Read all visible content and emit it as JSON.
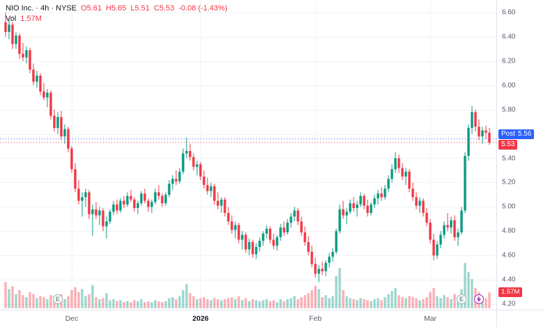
{
  "legend": {
    "title": "NIO Inc. · 4h · NYSE",
    "o": "O5.61",
    "h": "H5.65",
    "l": "L5.51",
    "c": "C5.53",
    "change": "-0.08 (-1.43%)",
    "vol_label": "Vol",
    "vol_value": "1.57M"
  },
  "price_axis": {
    "labels": [
      "6.60",
      "6.40",
      "6.20",
      "6.00",
      "5.80",
      "5.60",
      "5.40",
      "5.20",
      "5.00",
      "4.80",
      "4.60",
      "4.40",
      "4.20"
    ],
    "post_badge": {
      "label": "Post",
      "value": "5.56"
    },
    "last_badge": "5.53",
    "volume_badge": "1.57M"
  },
  "time_axis": {
    "ticks": [
      {
        "label": "Dec",
        "bar": 19,
        "major": false
      },
      {
        "label": "2026",
        "bar": 56,
        "major": true
      },
      {
        "label": "Feb",
        "bar": 89,
        "major": false
      },
      {
        "label": "Mar",
        "bar": 122,
        "major": false
      }
    ]
  },
  "markers": {
    "earnings_label": "E",
    "earnings": [
      {
        "bar": 15
      },
      {
        "bar": 131
      }
    ],
    "lightning": {
      "bar": 136
    }
  },
  "colors": {
    "up": "#089981",
    "down": "#F23645",
    "vol_up": "rgba(8,153,129,0.4)",
    "vol_down": "rgba(242,54,69,0.4)",
    "post": "#2962FF",
    "grid": "#EFF2F6",
    "axis_text": "#555B66"
  },
  "chart_data": {
    "type": "candlestick",
    "title": "NIO Inc. · 4h · NYSE",
    "price_range": [
      4.2,
      6.6
    ],
    "grid_step": 0.2,
    "last_price": 5.53,
    "post_market_price": 5.56,
    "last_volume_label": "1.57M",
    "volume_scale_max_m": 4.5,
    "x_axis_months": [
      "Dec",
      "2026",
      "Feb",
      "Mar"
    ],
    "candles": [
      [
        6.52,
        6.6,
        6.4,
        6.44
      ],
      [
        6.44,
        6.54,
        6.38,
        6.5
      ],
      [
        6.5,
        6.52,
        6.3,
        6.34
      ],
      [
        6.34,
        6.44,
        6.3,
        6.41
      ],
      [
        6.41,
        6.43,
        6.22,
        6.26
      ],
      [
        6.26,
        6.35,
        6.2,
        6.23
      ],
      [
        6.23,
        6.32,
        6.18,
        6.29
      ],
      [
        6.29,
        6.31,
        6.1,
        6.13
      ],
      [
        6.13,
        6.18,
        6.0,
        6.03
      ],
      [
        6.03,
        6.12,
        5.98,
        6.08
      ],
      [
        6.08,
        6.1,
        5.92,
        5.95
      ],
      [
        5.95,
        6.02,
        5.88,
        5.9
      ],
      [
        5.9,
        5.97,
        5.82,
        5.94
      ],
      [
        5.94,
        5.96,
        5.72,
        5.75
      ],
      [
        5.75,
        5.8,
        5.62,
        5.65
      ],
      [
        5.65,
        5.78,
        5.6,
        5.74
      ],
      [
        5.74,
        5.79,
        5.55,
        5.58
      ],
      [
        5.58,
        5.68,
        5.52,
        5.64
      ],
      [
        5.64,
        5.66,
        5.45,
        5.48
      ],
      [
        5.48,
        5.5,
        5.28,
        5.31
      ],
      [
        5.31,
        5.36,
        5.12,
        5.15
      ],
      [
        5.15,
        5.22,
        5.02,
        5.05
      ],
      [
        5.05,
        5.12,
        4.92,
        5.08
      ],
      [
        5.08,
        5.15,
        5.0,
        5.12
      ],
      [
        5.12,
        5.14,
        4.9,
        4.94
      ],
      [
        4.94,
        5.02,
        4.76,
        4.98
      ],
      [
        4.98,
        5.04,
        4.9,
        4.93
      ],
      [
        4.93,
        5.0,
        4.85,
        4.97
      ],
      [
        4.97,
        4.99,
        4.8,
        4.84
      ],
      [
        4.84,
        4.92,
        4.74,
        4.88
      ],
      [
        4.88,
        4.98,
        4.86,
        4.96
      ],
      [
        4.96,
        5.05,
        4.93,
        5.02
      ],
      [
        5.02,
        5.06,
        4.94,
        4.97
      ],
      [
        4.97,
        5.07,
        4.95,
        5.05
      ],
      [
        5.05,
        5.09,
        4.99,
        5.02
      ],
      [
        5.02,
        5.12,
        5.0,
        5.09
      ],
      [
        5.09,
        5.14,
        5.04,
        5.06
      ],
      [
        5.06,
        5.08,
        4.96,
        4.99
      ],
      [
        4.99,
        5.05,
        4.94,
        5.03
      ],
      [
        5.03,
        5.13,
        5.01,
        5.11
      ],
      [
        5.11,
        5.15,
        5.03,
        5.05
      ],
      [
        5.05,
        5.07,
        4.96,
        5.0
      ],
      [
        5.0,
        5.06,
        4.95,
        5.04
      ],
      [
        5.04,
        5.15,
        5.02,
        5.12
      ],
      [
        5.12,
        5.18,
        5.06,
        5.09
      ],
      [
        5.09,
        5.11,
        5.0,
        5.03
      ],
      [
        5.03,
        5.12,
        5.01,
        5.1
      ],
      [
        5.1,
        5.22,
        5.08,
        5.19
      ],
      [
        5.19,
        5.26,
        5.14,
        5.23
      ],
      [
        5.23,
        5.3,
        5.18,
        5.21
      ],
      [
        5.21,
        5.32,
        5.19,
        5.29
      ],
      [
        5.29,
        5.48,
        5.27,
        5.44
      ],
      [
        5.44,
        5.57,
        5.4,
        5.46
      ],
      [
        5.46,
        5.52,
        5.38,
        5.41
      ],
      [
        5.41,
        5.44,
        5.3,
        5.33
      ],
      [
        5.33,
        5.38,
        5.26,
        5.35
      ],
      [
        5.35,
        5.37,
        5.22,
        5.25
      ],
      [
        5.25,
        5.3,
        5.15,
        5.18
      ],
      [
        5.18,
        5.24,
        5.1,
        5.13
      ],
      [
        5.13,
        5.2,
        5.08,
        5.17
      ],
      [
        5.17,
        5.19,
        5.02,
        5.05
      ],
      [
        5.05,
        5.12,
        4.98,
        5.01
      ],
      [
        5.01,
        5.08,
        4.95,
        5.06
      ],
      [
        5.06,
        5.08,
        4.92,
        4.95
      ],
      [
        4.95,
        5.0,
        4.85,
        4.88
      ],
      [
        4.88,
        4.93,
        4.78,
        4.81
      ],
      [
        4.81,
        4.88,
        4.74,
        4.85
      ],
      [
        4.85,
        4.87,
        4.7,
        4.73
      ],
      [
        4.73,
        4.8,
        4.65,
        4.77
      ],
      [
        4.77,
        4.79,
        4.62,
        4.65
      ],
      [
        4.65,
        4.74,
        4.6,
        4.71
      ],
      [
        4.71,
        4.73,
        4.58,
        4.61
      ],
      [
        4.61,
        4.7,
        4.57,
        4.67
      ],
      [
        4.67,
        4.75,
        4.63,
        4.72
      ],
      [
        4.72,
        4.8,
        4.68,
        4.78
      ],
      [
        4.78,
        4.85,
        4.74,
        4.82
      ],
      [
        4.82,
        4.84,
        4.7,
        4.73
      ],
      [
        4.73,
        4.78,
        4.65,
        4.68
      ],
      [
        4.68,
        4.77,
        4.64,
        4.75
      ],
      [
        4.75,
        4.86,
        4.72,
        4.83
      ],
      [
        4.83,
        4.88,
        4.76,
        4.79
      ],
      [
        4.79,
        4.9,
        4.77,
        4.87
      ],
      [
        4.87,
        4.95,
        4.83,
        4.92
      ],
      [
        4.92,
        5.0,
        4.88,
        4.97
      ],
      [
        4.97,
        4.99,
        4.85,
        4.88
      ],
      [
        4.88,
        4.92,
        4.76,
        4.79
      ],
      [
        4.79,
        4.84,
        4.68,
        4.71
      ],
      [
        4.71,
        4.76,
        4.6,
        4.63
      ],
      [
        4.63,
        4.68,
        4.5,
        4.53
      ],
      [
        4.53,
        4.58,
        4.42,
        4.45
      ],
      [
        4.45,
        4.52,
        4.38,
        4.49
      ],
      [
        4.49,
        4.55,
        4.44,
        4.47
      ],
      [
        4.47,
        4.56,
        4.43,
        4.54
      ],
      [
        4.54,
        4.62,
        4.5,
        4.59
      ],
      [
        4.59,
        4.66,
        4.55,
        4.63
      ],
      [
        4.63,
        4.82,
        4.61,
        4.8
      ],
      [
        4.8,
        5.02,
        4.78,
        4.98
      ],
      [
        4.98,
        5.05,
        4.9,
        4.93
      ],
      [
        4.93,
        4.99,
        4.86,
        4.96
      ],
      [
        4.96,
        5.06,
        4.94,
        5.03
      ],
      [
        5.03,
        5.08,
        4.96,
        4.99
      ],
      [
        4.99,
        5.05,
        4.92,
        5.02
      ],
      [
        5.02,
        5.12,
        5.0,
        5.09
      ],
      [
        5.09,
        5.11,
        4.98,
        5.01
      ],
      [
        5.01,
        5.06,
        4.92,
        4.95
      ],
      [
        4.95,
        5.04,
        4.93,
        5.02
      ],
      [
        5.02,
        5.1,
        4.99,
        5.07
      ],
      [
        5.07,
        5.14,
        5.02,
        5.11
      ],
      [
        5.11,
        5.16,
        5.05,
        5.08
      ],
      [
        5.08,
        5.18,
        5.06,
        5.15
      ],
      [
        5.15,
        5.26,
        5.12,
        5.23
      ],
      [
        5.23,
        5.35,
        5.2,
        5.31
      ],
      [
        5.31,
        5.45,
        5.28,
        5.4
      ],
      [
        5.4,
        5.43,
        5.28,
        5.32
      ],
      [
        5.32,
        5.36,
        5.22,
        5.25
      ],
      [
        5.25,
        5.32,
        5.18,
        5.29
      ],
      [
        5.29,
        5.31,
        5.12,
        5.15
      ],
      [
        5.15,
        5.2,
        5.05,
        5.08
      ],
      [
        5.08,
        5.12,
        4.98,
        5.01
      ],
      [
        5.01,
        5.08,
        4.95,
        5.05
      ],
      [
        5.05,
        5.07,
        4.92,
        4.95
      ],
      [
        4.95,
        4.99,
        4.84,
        4.87
      ],
      [
        4.87,
        4.9,
        4.7,
        4.73
      ],
      [
        4.73,
        4.78,
        4.56,
        4.6
      ],
      [
        4.6,
        4.72,
        4.57,
        4.69
      ],
      [
        4.69,
        4.8,
        4.66,
        4.77
      ],
      [
        4.77,
        4.88,
        4.74,
        4.85
      ],
      [
        4.85,
        4.95,
        4.8,
        4.83
      ],
      [
        4.83,
        4.92,
        4.78,
        4.89
      ],
      [
        4.89,
        4.93,
        4.72,
        4.75
      ],
      [
        4.75,
        4.82,
        4.68,
        4.79
      ],
      [
        4.79,
        5.0,
        4.77,
        4.97
      ],
      [
        4.97,
        5.45,
        4.95,
        5.42
      ],
      [
        5.42,
        5.68,
        5.38,
        5.65
      ],
      [
        5.65,
        5.83,
        5.6,
        5.78
      ],
      [
        5.78,
        5.8,
        5.62,
        5.66
      ],
      [
        5.66,
        5.72,
        5.55,
        5.58
      ],
      [
        5.58,
        5.66,
        5.52,
        5.63
      ],
      [
        5.63,
        5.67,
        5.56,
        5.61
      ],
      [
        5.61,
        5.65,
        5.51,
        5.53
      ]
    ],
    "volumes_m": [
      2.6,
      1.9,
      2.2,
      1.4,
      1.8,
      1.3,
      1.1,
      1.6,
      1.4,
      1.0,
      1.2,
      1.1,
      0.9,
      1.3,
      1.2,
      1.0,
      1.4,
      0.9,
      1.2,
      1.8,
      2.1,
      1.6,
      1.9,
      1.2,
      1.4,
      2.3,
      1.1,
      0.9,
      1.0,
      1.5,
      0.8,
      0.9,
      0.7,
      0.8,
      0.6,
      0.7,
      0.6,
      0.8,
      0.7,
      0.9,
      0.6,
      0.7,
      0.6,
      0.8,
      0.7,
      0.6,
      0.7,
      1.0,
      1.1,
      0.9,
      1.2,
      1.8,
      2.4,
      1.5,
      1.2,
      0.9,
      1.0,
      1.1,
      0.9,
      0.8,
      1.0,
      0.9,
      0.8,
      0.9,
      1.0,
      1.1,
      0.9,
      1.2,
      0.8,
      1.0,
      0.7,
      0.9,
      0.8,
      0.7,
      0.8,
      0.9,
      0.7,
      0.8,
      0.6,
      0.9,
      0.7,
      0.9,
      1.0,
      1.2,
      0.9,
      1.1,
      1.3,
      1.5,
      1.8,
      2.2,
      1.9,
      1.1,
      1.3,
      1.0,
      1.2,
      3.2,
      4.0,
      1.8,
      1.2,
      1.0,
      0.9,
      0.8,
      1.0,
      0.9,
      0.8,
      0.7,
      0.9,
      1.0,
      0.8,
      1.1,
      1.4,
      1.7,
      2.0,
      1.3,
      1.1,
      1.0,
      1.2,
      1.1,
      1.0,
      0.8,
      0.9,
      1.1,
      1.6,
      2.0,
      1.2,
      1.0,
      1.3,
      1.1,
      0.9,
      1.4,
      1.0,
      1.9,
      4.5,
      3.6,
      2.9,
      2.0,
      1.6,
      1.2,
      1.0,
      1.57
    ]
  }
}
